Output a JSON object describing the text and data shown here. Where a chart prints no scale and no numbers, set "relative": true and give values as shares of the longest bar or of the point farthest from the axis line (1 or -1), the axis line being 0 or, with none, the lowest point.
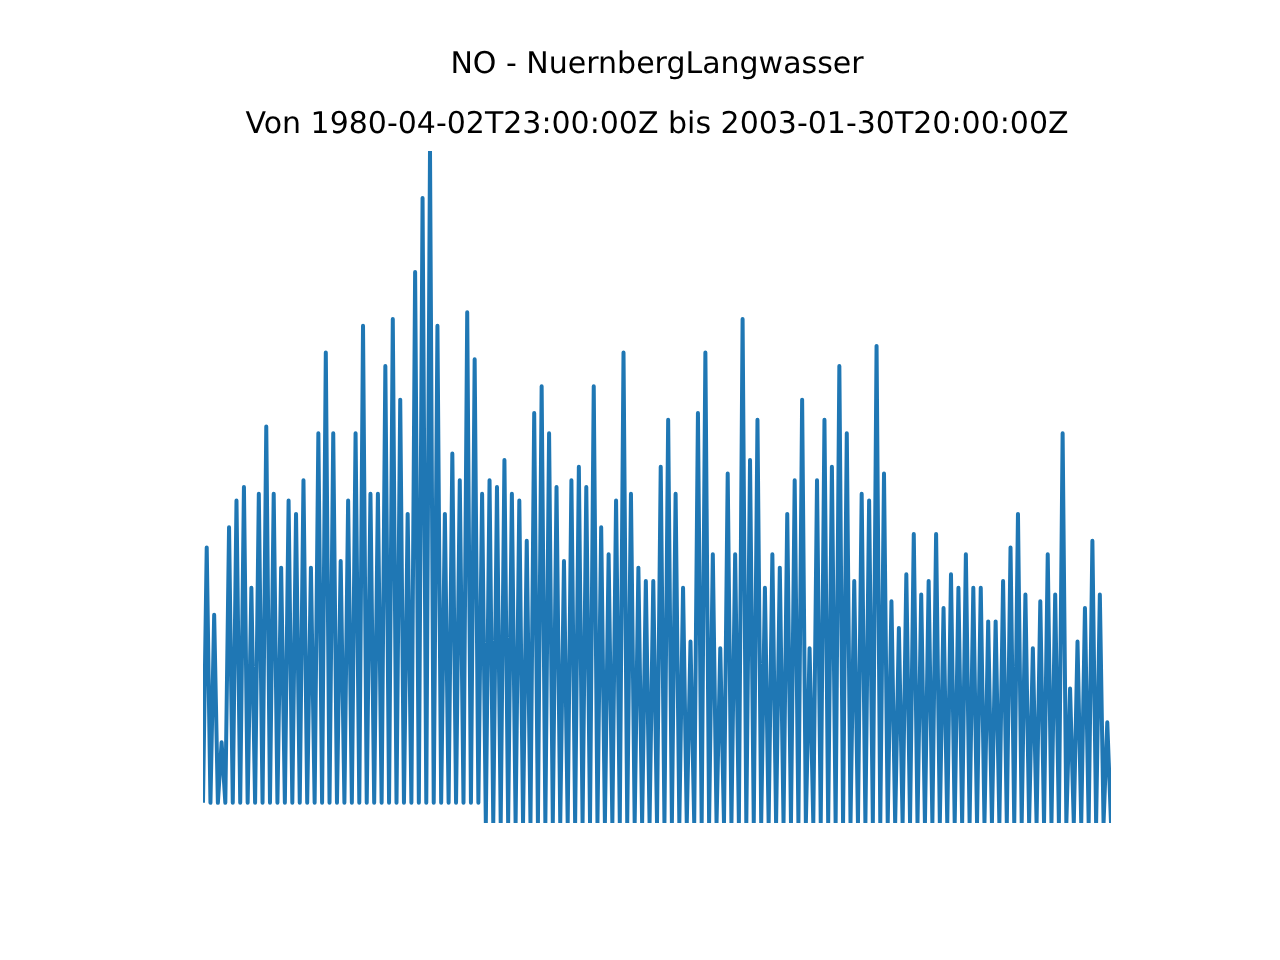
{
  "chart_data": {
    "type": "line",
    "title": "NO - NuernbergLangwasser",
    "subtitle": "Von 1980-04-02T23:00:00Z bis 2003-01-30T20:00:00Z",
    "relative": true,
    "color": "#1f77b4",
    "categories": [
      null,
      null,
      null,
      null,
      null,
      null,
      null,
      null,
      null,
      null,
      null,
      null,
      null,
      null,
      null,
      null,
      null,
      null,
      null,
      null,
      null,
      null,
      null,
      null,
      null,
      null,
      null,
      null,
      null,
      null,
      null,
      null,
      null,
      null,
      null,
      null,
      null,
      null,
      null,
      null,
      null,
      null,
      null,
      null,
      null,
      null,
      null,
      null,
      null,
      null,
      null,
      null,
      null,
      null,
      null,
      null,
      null,
      null,
      null,
      null,
      null,
      null,
      null,
      null,
      null,
      null,
      null,
      null,
      null,
      null,
      null,
      null,
      null,
      null,
      null,
      null,
      null,
      null,
      null,
      null,
      null,
      null,
      null,
      null,
      null,
      null,
      null,
      null,
      null,
      null,
      null,
      null,
      null,
      null,
      null,
      null,
      null,
      null,
      null,
      null,
      null,
      null,
      null,
      null,
      null,
      null,
      null,
      null,
      null,
      null,
      null,
      null,
      null,
      null,
      null,
      null,
      null,
      null,
      null,
      null,
      null,
      null,
      null,
      null,
      null,
      null,
      null,
      null,
      null,
      null,
      null,
      null,
      null,
      null,
      null,
      null,
      null,
      null,
      null,
      null,
      null,
      null,
      null,
      null,
      null,
      null,
      null,
      null,
      null,
      null,
      null,
      null,
      null,
      null,
      null,
      null,
      null,
      null,
      null,
      null,
      null,
      null,
      null,
      null,
      null,
      null,
      null,
      null,
      null,
      null,
      null,
      null,
      null,
      null,
      null,
      null,
      null,
      null,
      null,
      null,
      null,
      null,
      null,
      null,
      null,
      null,
      null,
      null,
      null,
      null,
      null,
      null,
      null,
      null,
      null,
      null,
      null,
      null,
      null,
      null,
      null,
      null,
      null,
      null,
      null,
      null,
      null,
      null,
      null,
      null,
      null,
      null,
      null,
      null,
      null,
      null,
      null,
      null,
      null,
      null,
      null,
      null,
      null,
      null,
      null,
      null,
      null,
      null,
      null,
      null,
      null,
      null,
      null,
      null,
      null,
      null,
      null,
      null,
      null,
      null,
      null,
      null,
      null,
      null,
      null
    ],
    "values": [
      0.03,
      0.41,
      0.03,
      0.31,
      0.03,
      0.12,
      0.03,
      0.44,
      0.03,
      0.48,
      0.03,
      0.5,
      0.03,
      0.35,
      0.03,
      0.49,
      0.03,
      0.59,
      0.03,
      0.49,
      0.03,
      0.38,
      0.03,
      0.48,
      0.03,
      0.46,
      0.03,
      0.51,
      0.03,
      0.38,
      0.03,
      0.58,
      0.03,
      0.7,
      0.03,
      0.58,
      0.03,
      0.39,
      0.03,
      0.48,
      0.03,
      0.58,
      0.03,
      0.74,
      0.03,
      0.49,
      0.03,
      0.49,
      0.03,
      0.68,
      0.03,
      0.75,
      0.03,
      0.63,
      0.03,
      0.46,
      0.03,
      0.82,
      0.03,
      0.93,
      0.03,
      1.0,
      0.03,
      0.74,
      0.03,
      0.46,
      0.03,
      0.55,
      0.03,
      0.51,
      0.03,
      0.76,
      0.03,
      0.69,
      0.03,
      0.49,
      0,
      0.51,
      0,
      0.5,
      0,
      0.54,
      0,
      0.49,
      0,
      0.48,
      0,
      0.42,
      0,
      0.61,
      0,
      0.65,
      0,
      0.58,
      0,
      0.5,
      0,
      0.39,
      0,
      0.51,
      0,
      0.53,
      0,
      0.5,
      0,
      0.65,
      0,
      0.44,
      0,
      0.4,
      0,
      0.48,
      0,
      0.7,
      0,
      0.49,
      0,
      0.38,
      0,
      0.36,
      0,
      0.36,
      0,
      0.53,
      0,
      0.6,
      0,
      0.49,
      0,
      0.35,
      0,
      0.27,
      0,
      0.61,
      0,
      0.7,
      0,
      0.4,
      0,
      0.26,
      0,
      0.52,
      0,
      0.4,
      0,
      0.75,
      0,
      0.54,
      0,
      0.6,
      0,
      0.35,
      0,
      0.4,
      0,
      0.38,
      0,
      0.46,
      0,
      0.51,
      0,
      0.63,
      0,
      0.26,
      0,
      0.51,
      0,
      0.6,
      0,
      0.53,
      0,
      0.68,
      0,
      0.58,
      0,
      0.36,
      0,
      0.49,
      0,
      0.48,
      0,
      0.71,
      0,
      0.52,
      0,
      0.33,
      0,
      0.29,
      0,
      0.37,
      0,
      0.43,
      0,
      0.34,
      0,
      0.36,
      0,
      0.43,
      0,
      0.32,
      0,
      0.37,
      0,
      0.35,
      0,
      0.4,
      0,
      0.35,
      0,
      0.35,
      0,
      0.3,
      0,
      0.3,
      0,
      0.36,
      0,
      0.41,
      0,
      0.46,
      0,
      0.34,
      0,
      0.26,
      0,
      0.33,
      0,
      0.4,
      0,
      0.34,
      0,
      0.58,
      0,
      0.2,
      0,
      0.27,
      0,
      0.32,
      0,
      0.42,
      0,
      0.34,
      0,
      0.15,
      0
    ]
  }
}
